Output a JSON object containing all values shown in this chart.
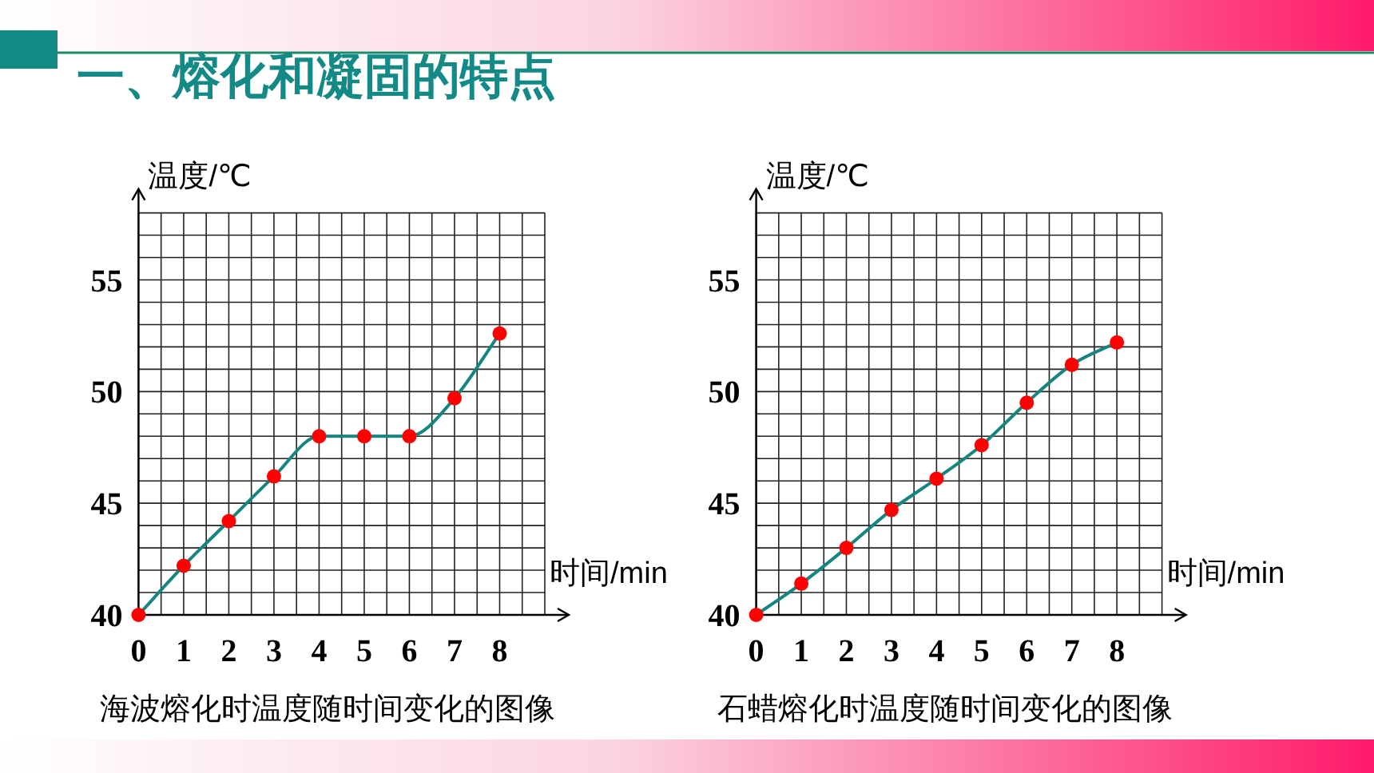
{
  "chart_data": [
    {
      "type": "line",
      "title": "一、熔化和凝固的特点",
      "xlabel": "时间/min",
      "ylabel": "温度/℃",
      "annotations": [
        "海波熔化时温度随时间变化的图像"
      ],
      "x": [
        0,
        1,
        2,
        3,
        4,
        5,
        6,
        7,
        8
      ],
      "series": [
        {
          "color": "#16857f",
          "colors": [
            "#ff0000",
            "#ff0000",
            "#ff0000",
            "#ff0000",
            "#ff0000",
            "#ff0000",
            "#ff0000",
            "#ff0000",
            "#ff0000"
          ],
          "values": [
            40,
            42.2,
            44.2,
            46.2,
            48,
            48,
            48,
            49.7,
            52.6
          ]
        }
      ],
      "xlim": [
        0,
        9
      ],
      "ylim": [
        40,
        58
      ],
      "xticks": [
        0,
        {
          "value": 0.5,
          "label": null
        },
        1,
        {
          "value": 1.5,
          "label": null
        },
        2,
        {
          "value": 2.5,
          "label": null
        },
        3,
        {
          "value": 3.5,
          "label": null
        },
        4,
        {
          "value": 4.5,
          "label": null
        },
        5,
        {
          "value": 5.5,
          "label": null
        },
        6,
        {
          "value": 6.5,
          "label": null
        },
        7,
        {
          "value": 7.5,
          "label": null
        },
        8,
        {
          "value": 8.5,
          "label": null
        },
        {
          "value": 9,
          "label": null
        }
      ],
      "yticks": [
        40,
        {
          "value": 41,
          "label": null
        },
        {
          "value": 42,
          "label": null
        },
        {
          "value": 43,
          "label": null
        },
        {
          "value": 44,
          "label": null
        },
        45,
        {
          "value": 46,
          "label": null
        },
        {
          "value": 47,
          "label": null
        },
        {
          "value": 48,
          "label": null
        },
        {
          "value": 49,
          "label": null
        },
        50,
        {
          "value": 51,
          "label": null
        },
        {
          "value": 52,
          "label": null
        },
        {
          "value": 53,
          "label": null
        },
        {
          "value": 54,
          "label": null
        },
        55,
        {
          "value": 56,
          "label": null
        },
        {
          "value": 57,
          "label": null
        },
        {
          "value": 58,
          "label": null
        }
      ],
      "grid": true,
      "marker": "circle",
      "line_style": "solid"
    },
    {
      "type": "line",
      "xlabel": "时间/min",
      "ylabel": "温度/℃",
      "annotations": [
        "石蜡熔化时温度随时间变化的图像"
      ],
      "x": [
        0,
        1,
        2,
        3,
        4,
        5,
        6,
        7,
        8
      ],
      "series": [
        {
          "color": "#16857f",
          "colors": [
            "#ff0000",
            "#ff0000",
            "#ff0000",
            "#ff0000",
            "#ff0000",
            "#ff0000",
            "#ff0000",
            "#ff0000",
            "#ff0000"
          ],
          "values": [
            40,
            41.4,
            43,
            44.7,
            46.1,
            47.6,
            49.5,
            51.2,
            52.2
          ]
        }
      ],
      "xlim": [
        0,
        9
      ],
      "ylim": [
        40,
        58
      ],
      "xticks": [
        0,
        {
          "value": 0.5,
          "label": null
        },
        1,
        {
          "value": 1.5,
          "label": null
        },
        2,
        {
          "value": 2.5,
          "label": null
        },
        3,
        {
          "value": 3.5,
          "label": null
        },
        4,
        {
          "value": 4.5,
          "label": null
        },
        5,
        {
          "value": 5.5,
          "label": null
        },
        6,
        {
          "value": 6.5,
          "label": null
        },
        7,
        {
          "value": 7.5,
          "label": null
        },
        8,
        {
          "value": 8.5,
          "label": null
        },
        {
          "value": 9,
          "label": null
        }
      ],
      "yticks": [
        40,
        {
          "value": 41,
          "label": null
        },
        {
          "value": 42,
          "label": null
        },
        {
          "value": 43,
          "label": null
        },
        {
          "value": 44,
          "label": null
        },
        45,
        {
          "value": 46,
          "label": null
        },
        {
          "value": 47,
          "label": null
        },
        {
          "value": 48,
          "label": null
        },
        {
          "value": 49,
          "label": null
        },
        50,
        {
          "value": 51,
          "label": null
        },
        {
          "value": 52,
          "label": null
        },
        {
          "value": 53,
          "label": null
        },
        {
          "value": 54,
          "label": null
        },
        55,
        {
          "value": 56,
          "label": null
        },
        {
          "value": 57,
          "label": null
        },
        {
          "value": 58,
          "label": null
        }
      ],
      "grid": true,
      "marker": "circle",
      "line_style": "solid"
    }
  ]
}
